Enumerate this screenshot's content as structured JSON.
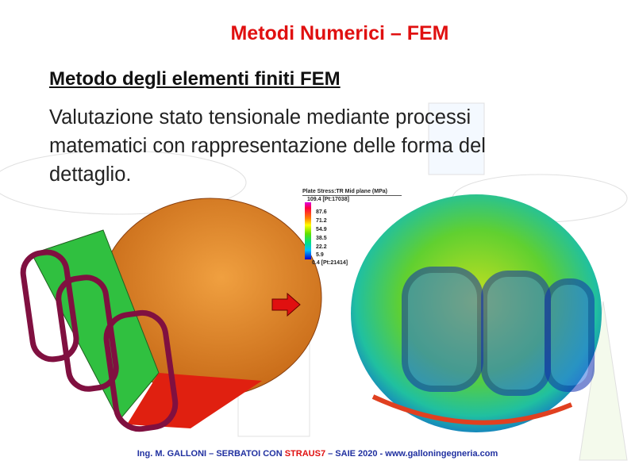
{
  "slide": {
    "title": "Metodi Numerici – FEM",
    "heading": "Metodo degli elementi finiti FEM",
    "body_lines": [
      "Valutazione stato tensionale mediante processi",
      "matematici con rappresentazione delle forma del",
      "dettaglio."
    ]
  },
  "legend": {
    "title": "Plate Stress:TR Mid plane (MPa)",
    "max": "109.4 [Pt:17038]",
    "values": [
      "87.6",
      "71.2",
      "54.9",
      "38.5",
      "22.2",
      "5.9"
    ],
    "min": "0.4 [Pt:21414]"
  },
  "footer": {
    "part1": "Ing. M. GALLONI – SERBATOI  CON ",
    "highlight": "STRAUS7",
    "part2": " – SAIE 2020 - www.galloningegneria.com"
  },
  "colors": {
    "title": "#e01010",
    "footer": "#2030a0",
    "arrow": "#e01010"
  }
}
